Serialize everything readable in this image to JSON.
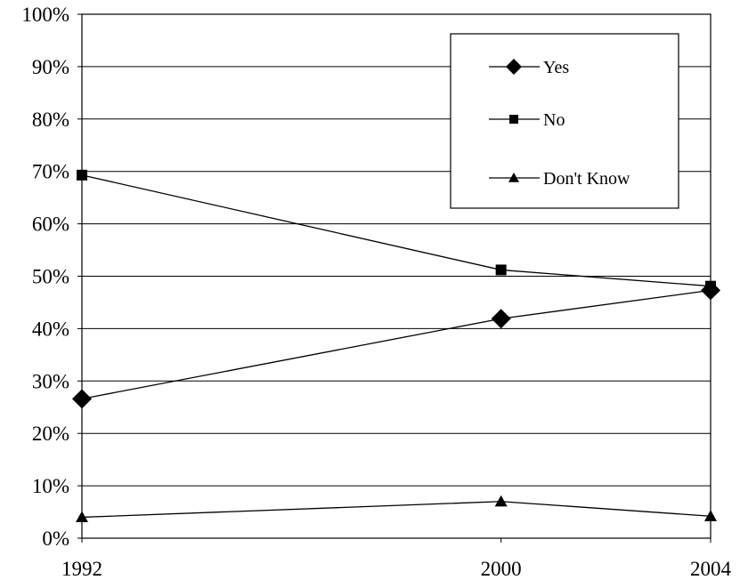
{
  "chart_data": {
    "type": "line",
    "title": "",
    "xlabel": "",
    "ylabel": "",
    "categories": [
      "1992",
      "2000",
      "2004"
    ],
    "x_positions": [
      1992,
      2000,
      2004
    ],
    "ylim": [
      0,
      100
    ],
    "y_ticks": [
      0,
      10,
      20,
      30,
      40,
      50,
      60,
      70,
      80,
      90,
      100
    ],
    "y_tick_labels": [
      "0%",
      "10%",
      "20%",
      "30%",
      "40%",
      "50%",
      "60%",
      "70%",
      "80%",
      "90%",
      "100%"
    ],
    "y_unit": "%",
    "grid": true,
    "legend_position": "top-right",
    "series": [
      {
        "name": "Yes",
        "marker": "diamond",
        "values": [
          26.6,
          41.9,
          47.3
        ]
      },
      {
        "name": "No",
        "marker": "square",
        "values": [
          69.3,
          51.2,
          48.1
        ]
      },
      {
        "name": "Don't Know",
        "marker": "triangle",
        "values": [
          4.0,
          7.0,
          4.2
        ]
      }
    ],
    "line_color": "#000000"
  }
}
